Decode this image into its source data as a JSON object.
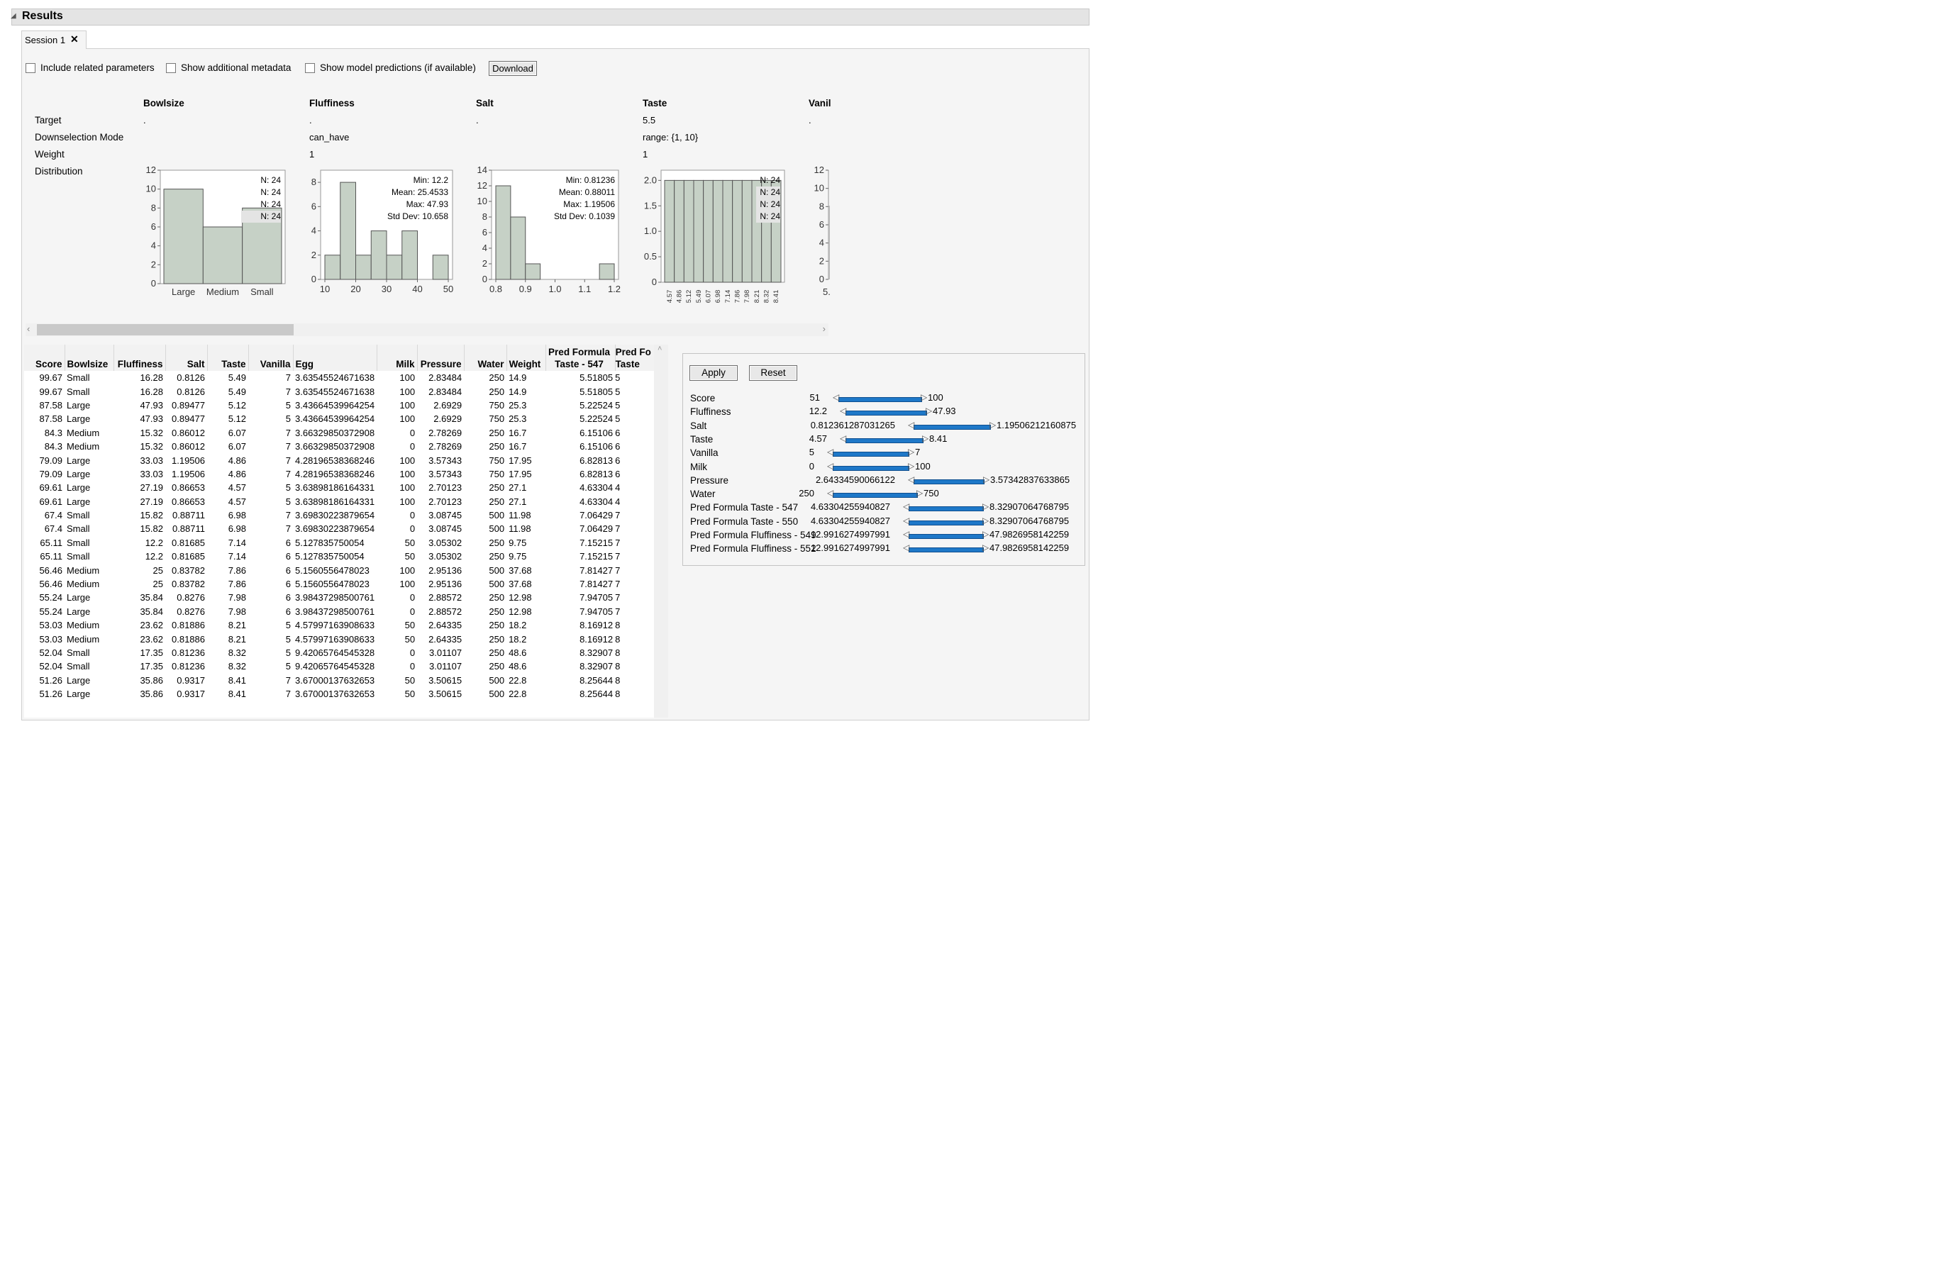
{
  "results": {
    "title": "Results"
  },
  "session_tab": {
    "label": "Session 1"
  },
  "options": {
    "include_related": "Include related parameters",
    "show_metadata": "Show additional metadata",
    "show_predictions": "Show model predictions (if available)",
    "download": "Download"
  },
  "summary": {
    "row_labels": [
      "Target",
      "Downselection Mode",
      "Weight",
      "Distribution"
    ],
    "columns": [
      {
        "name": "Bowlsize",
        "target": ".",
        "mode": "",
        "weight": ""
      },
      {
        "name": "Fluffiness",
        "target": ".",
        "mode": "can_have",
        "weight": "1"
      },
      {
        "name": "Salt",
        "target": ".",
        "mode": "",
        "weight": ""
      },
      {
        "name": "Taste",
        "target": "5.5",
        "mode": "range: {1, 10}",
        "weight": "1"
      },
      {
        "name": "Vanil",
        "target": ".",
        "mode": "",
        "weight": ""
      }
    ]
  },
  "charts": {
    "bowlsize": {
      "stats": [
        "N: 24",
        "N: 24",
        "N: 24",
        "N: 24"
      ]
    },
    "fluffiness": {
      "stats": [
        "Min: 12.2",
        "Mean: 25.4533",
        "Max: 47.93",
        "Std Dev: 10.658"
      ]
    },
    "salt": {
      "stats": [
        "Min: 0.81236",
        "Mean: 0.88011",
        "Max: 1.19506",
        "Std Dev: 0.1039"
      ]
    },
    "taste": {
      "stats": [
        "N: 24",
        "N: 24",
        "N: 24",
        "N: 24"
      ]
    }
  },
  "chart_data": [
    {
      "type": "bar",
      "title": "Bowlsize",
      "categories": [
        "Large",
        "Medium",
        "Small"
      ],
      "values": [
        10,
        6,
        8
      ],
      "ylim": [
        0,
        12
      ],
      "yticks": [
        0,
        2,
        4,
        6,
        8,
        10,
        12
      ]
    },
    {
      "type": "bar",
      "title": "Fluffiness",
      "bins": [
        [
          10,
          15
        ],
        [
          15,
          20
        ],
        [
          20,
          25
        ],
        [
          25,
          30
        ],
        [
          30,
          35
        ],
        [
          35,
          40
        ],
        [
          40,
          45
        ],
        [
          45,
          50
        ]
      ],
      "values": [
        2,
        8,
        2,
        4,
        2,
        4,
        0,
        2
      ],
      "xlim": [
        10,
        50
      ],
      "xticks": [
        10,
        20,
        30,
        40,
        50
      ],
      "ylim": [
        0,
        9
      ],
      "yticks": [
        0,
        2,
        4,
        6,
        8
      ]
    },
    {
      "type": "bar",
      "title": "Salt",
      "bins": [
        [
          0.8,
          0.85
        ],
        [
          0.85,
          0.9
        ],
        [
          0.9,
          0.95
        ],
        [
          0.95,
          1.0
        ],
        [
          1.0,
          1.05
        ],
        [
          1.05,
          1.1
        ],
        [
          1.1,
          1.15
        ],
        [
          1.15,
          1.2
        ]
      ],
      "values": [
        12,
        8,
        2,
        0,
        0,
        0,
        0,
        2
      ],
      "xlim": [
        0.8,
        1.2
      ],
      "xticks": [
        "0.8",
        "0.9",
        "1.0",
        "1.1",
        "1.2"
      ],
      "ylim": [
        0,
        14
      ],
      "yticks": [
        0,
        2,
        4,
        6,
        8,
        10,
        12,
        14
      ]
    },
    {
      "type": "bar",
      "title": "Taste",
      "categories": [
        "4.57",
        "4.86",
        "5.12",
        "5.49",
        "6.07",
        "6.98",
        "7.14",
        "7.86",
        "7.98",
        "8.21",
        "8.32",
        "8.41"
      ],
      "values": [
        2,
        2,
        2,
        2,
        2,
        2,
        2,
        2,
        2,
        2,
        2,
        2
      ],
      "ylim": [
        0,
        2.2
      ],
      "yticks": [
        "0",
        "0.5",
        "1.0",
        "1.5",
        "2.0"
      ]
    },
    {
      "type": "bar",
      "title": "Vanil",
      "values": [],
      "ylim": [
        0,
        12
      ],
      "yticks": [
        0,
        2,
        4,
        6,
        8,
        10,
        12
      ],
      "xticks": [
        "5."
      ]
    }
  ],
  "table": {
    "headers": [
      "Score",
      "Bowlsize",
      "Fluffiness",
      "Salt",
      "Taste",
      "Vanilla",
      "Egg",
      "Milk",
      "Pressure",
      "Water",
      "Weight",
      "Pred Formula\nTaste - 547",
      "Pred Fo\nTaste"
    ],
    "rows": [
      [
        "99.67",
        "Small",
        "16.28",
        "0.8126",
        "5.49",
        "7",
        "3.63545524671638",
        "100",
        "2.83484",
        "250",
        "14.9",
        "5.51805",
        "5"
      ],
      [
        "99.67",
        "Small",
        "16.28",
        "0.8126",
        "5.49",
        "7",
        "3.63545524671638",
        "100",
        "2.83484",
        "250",
        "14.9",
        "5.51805",
        "5"
      ],
      [
        "87.58",
        "Large",
        "47.93",
        "0.89477",
        "5.12",
        "5",
        "3.43664539964254",
        "100",
        "2.6929",
        "750",
        "25.3",
        "5.22524",
        "5"
      ],
      [
        "87.58",
        "Large",
        "47.93",
        "0.89477",
        "5.12",
        "5",
        "3.43664539964254",
        "100",
        "2.6929",
        "750",
        "25.3",
        "5.22524",
        "5"
      ],
      [
        "84.3",
        "Medium",
        "15.32",
        "0.86012",
        "6.07",
        "7",
        "3.66329850372908",
        "0",
        "2.78269",
        "250",
        "16.7",
        "6.15106",
        "6"
      ],
      [
        "84.3",
        "Medium",
        "15.32",
        "0.86012",
        "6.07",
        "7",
        "3.66329850372908",
        "0",
        "2.78269",
        "250",
        "16.7",
        "6.15106",
        "6"
      ],
      [
        "79.09",
        "Large",
        "33.03",
        "1.19506",
        "4.86",
        "7",
        "4.28196538368246",
        "100",
        "3.57343",
        "750",
        "17.95",
        "6.82813",
        "6"
      ],
      [
        "79.09",
        "Large",
        "33.03",
        "1.19506",
        "4.86",
        "7",
        "4.28196538368246",
        "100",
        "3.57343",
        "750",
        "17.95",
        "6.82813",
        "6"
      ],
      [
        "69.61",
        "Large",
        "27.19",
        "0.86653",
        "4.57",
        "5",
        "3.63898186164331",
        "100",
        "2.70123",
        "250",
        "27.1",
        "4.63304",
        "4"
      ],
      [
        "69.61",
        "Large",
        "27.19",
        "0.86653",
        "4.57",
        "5",
        "3.63898186164331",
        "100",
        "2.70123",
        "250",
        "27.1",
        "4.63304",
        "4"
      ],
      [
        "67.4",
        "Small",
        "15.82",
        "0.88711",
        "6.98",
        "7",
        "3.69830223879654",
        "0",
        "3.08745",
        "500",
        "11.98",
        "7.06429",
        "7"
      ],
      [
        "67.4",
        "Small",
        "15.82",
        "0.88711",
        "6.98",
        "7",
        "3.69830223879654",
        "0",
        "3.08745",
        "500",
        "11.98",
        "7.06429",
        "7"
      ],
      [
        "65.11",
        "Small",
        "12.2",
        "0.81685",
        "7.14",
        "6",
        "5.127835750054",
        "50",
        "3.05302",
        "250",
        "9.75",
        "7.15215",
        "7"
      ],
      [
        "65.11",
        "Small",
        "12.2",
        "0.81685",
        "7.14",
        "6",
        "5.127835750054",
        "50",
        "3.05302",
        "250",
        "9.75",
        "7.15215",
        "7"
      ],
      [
        "56.46",
        "Medium",
        "25",
        "0.83782",
        "7.86",
        "6",
        "5.1560556478023",
        "100",
        "2.95136",
        "500",
        "37.68",
        "7.81427",
        "7"
      ],
      [
        "56.46",
        "Medium",
        "25",
        "0.83782",
        "7.86",
        "6",
        "5.1560556478023",
        "100",
        "2.95136",
        "500",
        "37.68",
        "7.81427",
        "7"
      ],
      [
        "55.24",
        "Large",
        "35.84",
        "0.8276",
        "7.98",
        "6",
        "3.98437298500761",
        "0",
        "2.88572",
        "250",
        "12.98",
        "7.94705",
        "7"
      ],
      [
        "55.24",
        "Large",
        "35.84",
        "0.8276",
        "7.98",
        "6",
        "3.98437298500761",
        "0",
        "2.88572",
        "250",
        "12.98",
        "7.94705",
        "7"
      ],
      [
        "53.03",
        "Medium",
        "23.62",
        "0.81886",
        "8.21",
        "5",
        "4.57997163908633",
        "50",
        "2.64335",
        "250",
        "18.2",
        "8.16912",
        "8"
      ],
      [
        "53.03",
        "Medium",
        "23.62",
        "0.81886",
        "8.21",
        "5",
        "4.57997163908633",
        "50",
        "2.64335",
        "250",
        "18.2",
        "8.16912",
        "8"
      ],
      [
        "52.04",
        "Small",
        "17.35",
        "0.81236",
        "8.32",
        "5",
        "9.42065764545328",
        "0",
        "3.01107",
        "250",
        "48.6",
        "8.32907",
        "8"
      ],
      [
        "52.04",
        "Small",
        "17.35",
        "0.81236",
        "8.32",
        "5",
        "9.42065764545328",
        "0",
        "3.01107",
        "250",
        "48.6",
        "8.32907",
        "8"
      ],
      [
        "51.26",
        "Large",
        "35.86",
        "0.9317",
        "8.41",
        "7",
        "3.67000137632653",
        "50",
        "3.50615",
        "500",
        "22.8",
        "8.25644",
        "8"
      ],
      [
        "51.26",
        "Large",
        "35.86",
        "0.9317",
        "8.41",
        "7",
        "3.67000137632653",
        "50",
        "3.50615",
        "500",
        "22.8",
        "8.25644",
        "8"
      ]
    ]
  },
  "filter": {
    "apply": "Apply",
    "reset": "Reset",
    "items": [
      {
        "label": "Score",
        "min": "51",
        "max": "100"
      },
      {
        "label": "Fluffiness",
        "min": "12.2",
        "max": "47.93"
      },
      {
        "label": "Salt",
        "min": "0.812361287031265",
        "max": "1.19506212160875"
      },
      {
        "label": "Taste",
        "min": "4.57",
        "max": "8.41"
      },
      {
        "label": "Vanilla",
        "min": "5",
        "max": "7"
      },
      {
        "label": "Milk",
        "min": "0",
        "max": "100"
      },
      {
        "label": "Pressure",
        "min": "2.64334590066122",
        "max": "3.57342837633865"
      },
      {
        "label": "Water",
        "min": "250",
        "max": "750"
      },
      {
        "label": "Pred Formula Taste - 547",
        "min": "4.63304255940827",
        "max": "8.32907064768795"
      },
      {
        "label": "Pred Formula Taste - 550",
        "min": "4.63304255940827",
        "max": "8.32907064768795"
      },
      {
        "label": "Pred Formula Fluffiness - 549",
        "min": "12.9916274997991",
        "max": "47.9826958142259"
      },
      {
        "label": "Pred Formula Fluffiness - 552",
        "min": "12.9916274997991",
        "max": "47.9826958142259"
      }
    ]
  },
  "colors": {
    "bar_fill": "#c6d1c6",
    "bar_stroke": "#555555",
    "slider": "#1e78c8"
  }
}
